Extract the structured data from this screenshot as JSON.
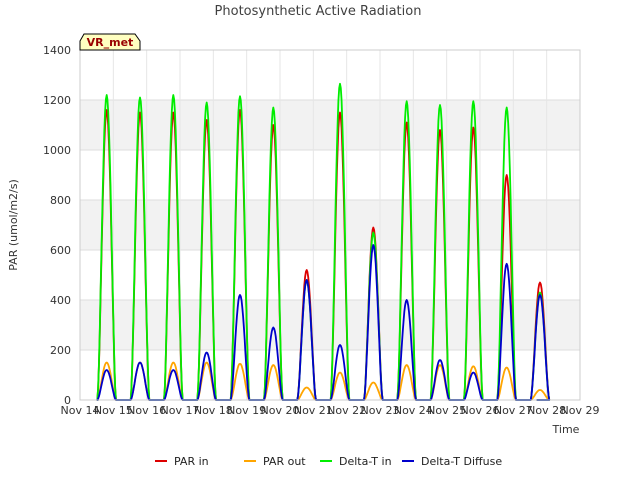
{
  "chart_data": {
    "type": "line",
    "title": "Photosynthetic Active Radiation",
    "xlabel": "Time",
    "ylabel": "PAR (umol/m2/s)",
    "ylim": [
      0,
      1400
    ],
    "yticks": [
      0,
      200,
      400,
      600,
      800,
      1000,
      1200,
      1400
    ],
    "x_domain_days": [
      14,
      29
    ],
    "xticks": [
      {
        "day": 14,
        "label": "Nov 14"
      },
      {
        "day": 15,
        "label": "Nov 15"
      },
      {
        "day": 16,
        "label": "Nov 16"
      },
      {
        "day": 17,
        "label": "Nov 17"
      },
      {
        "day": 18,
        "label": "Nov 18"
      },
      {
        "day": 19,
        "label": "Nov 19"
      },
      {
        "day": 20,
        "label": "Nov 20"
      },
      {
        "day": 21,
        "label": "Nov 21"
      },
      {
        "day": 22,
        "label": "Nov 22"
      },
      {
        "day": 23,
        "label": "Nov 23"
      },
      {
        "day": 24,
        "label": "Nov 24"
      },
      {
        "day": 25,
        "label": "Nov 25"
      },
      {
        "day": 26,
        "label": "Nov 26"
      },
      {
        "day": 27,
        "label": "Nov 27"
      },
      {
        "day": 28,
        "label": "Nov 28"
      },
      {
        "day": 29,
        "label": "Nov 29"
      }
    ],
    "daily_peak_centers": [
      14.8,
      15.8,
      16.8,
      17.8,
      18.8,
      19.8,
      20.8,
      21.8,
      22.8,
      23.8,
      24.8,
      25.8,
      26.8,
      27.8
    ],
    "series": [
      {
        "name": "PAR in",
        "color": "#dd0000",
        "daily_peaks": [
          1160,
          1150,
          1150,
          1120,
          1160,
          1100,
          520,
          1150,
          690,
          1110,
          1080,
          1090,
          900,
          470
        ]
      },
      {
        "name": "PAR out",
        "color": "#ffa500",
        "daily_peaks": [
          150,
          150,
          150,
          150,
          145,
          140,
          50,
          110,
          70,
          140,
          140,
          135,
          130,
          40
        ]
      },
      {
        "name": "Delta-T in",
        "color": "#00ee00",
        "daily_peaks": [
          1220,
          1210,
          1220,
          1190,
          1215,
          1170,
          480,
          1265,
          670,
          1195,
          1180,
          1195,
          1170,
          430
        ]
      },
      {
        "name": "Delta-T Diffuse",
        "color": "#0000cc",
        "daily_peaks": [
          120,
          150,
          120,
          190,
          420,
          290,
          480,
          220,
          620,
          400,
          160,
          110,
          545,
          420
        ]
      }
    ],
    "grid": true,
    "legend_position": "bottom"
  },
  "badge": {
    "label": "VR_met"
  }
}
